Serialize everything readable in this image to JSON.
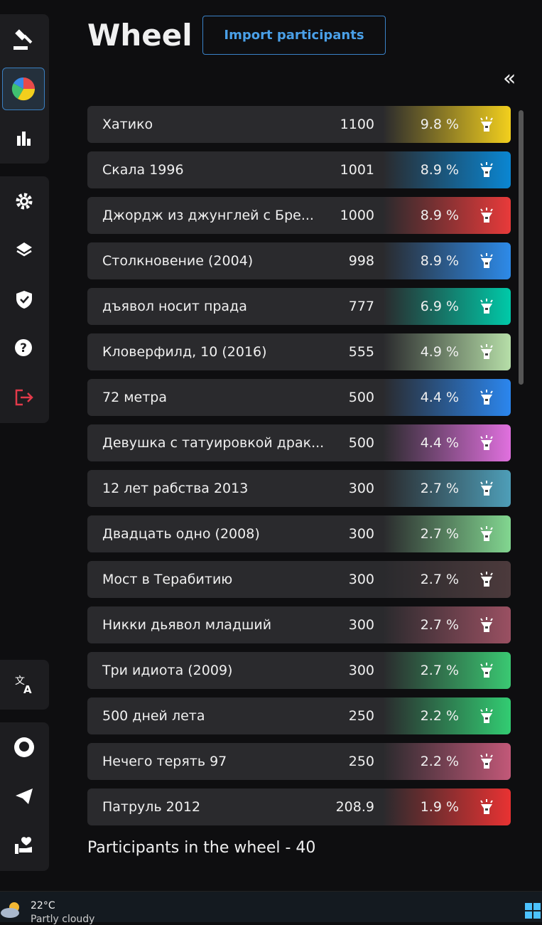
{
  "header": {
    "title": "Wheel",
    "import_button": "Import participants",
    "collapse": "«"
  },
  "participants": [
    {
      "name": "Хатико",
      "amount": "1100",
      "percent": "9.8 %",
      "color": "#f2cf1d"
    },
    {
      "name": "Скала 1996",
      "amount": "1001",
      "percent": "8.9 %",
      "color": "#0a86d2"
    },
    {
      "name": "Джордж из джунглей с Бре...",
      "amount": "1000",
      "percent": "8.9 %",
      "color": "#e83a3a"
    },
    {
      "name": "Столкновение (2004)",
      "amount": "998",
      "percent": "8.9 %",
      "color": "#2d8ae8"
    },
    {
      "name": "дъявол носит прада",
      "amount": "777",
      "percent": "6.9 %",
      "color": "#00c9a8"
    },
    {
      "name": "Кловерфилд, 10 (2016)",
      "amount": "555",
      "percent": "4.9 %",
      "color": "#b6dea8"
    },
    {
      "name": "72 метра",
      "amount": "500",
      "percent": "4.4 %",
      "color": "#2b86ee"
    },
    {
      "name": "Девушка с татуировкой драк...",
      "amount": "500",
      "percent": "4.4 %",
      "color": "#e070de"
    },
    {
      "name": "12 лет рабства 2013",
      "amount": "300",
      "percent": "2.7 %",
      "color": "#4e9eb8"
    },
    {
      "name": "Двадцать одно (2008)",
      "amount": "300",
      "percent": "2.7 %",
      "color": "#82d690"
    },
    {
      "name": "Мост в Терабитию",
      "amount": "300",
      "percent": "2.7 %",
      "color": "#4c3a3c"
    },
    {
      "name": "Никки дьявол младший",
      "amount": "300",
      "percent": "2.7 %",
      "color": "#9a5062"
    },
    {
      "name": "Три идиота (2009)",
      "amount": "300",
      "percent": "2.7 %",
      "color": "#3ac872"
    },
    {
      "name": "500 дней лета",
      "amount": "250",
      "percent": "2.2 %",
      "color": "#32cc72"
    },
    {
      "name": "Нечего терять 97",
      "amount": "250",
      "percent": "2.2 %",
      "color": "#c25878"
    },
    {
      "name": "Патруль 2012",
      "amount": "208.9",
      "percent": "1.9 %",
      "color": "#e83232"
    }
  ],
  "footer": "Participants in the wheel - 40",
  "taskbar": {
    "temperature": "22°C",
    "weather": "Partly cloudy"
  }
}
